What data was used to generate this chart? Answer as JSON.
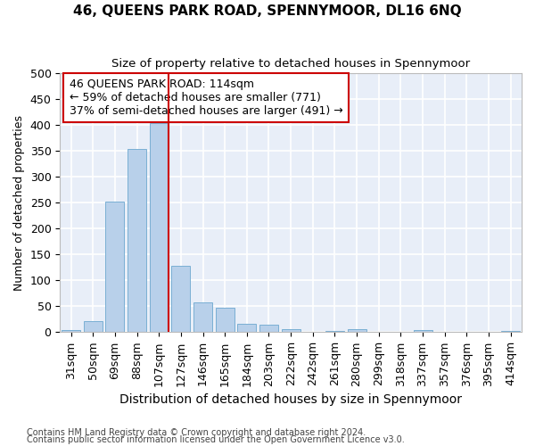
{
  "title": "46, QUEENS PARK ROAD, SPENNYMOOR, DL16 6NQ",
  "subtitle": "Size of property relative to detached houses in Spennymoor",
  "xlabel": "Distribution of detached houses by size in Spennymoor",
  "ylabel": "Number of detached properties",
  "footnote1": "Contains HM Land Registry data © Crown copyright and database right 2024.",
  "footnote2": "Contains public sector information licensed under the Open Government Licence v3.0.",
  "categories": [
    "31sqm",
    "50sqm",
    "69sqm",
    "88sqm",
    "107sqm",
    "127sqm",
    "146sqm",
    "165sqm",
    "184sqm",
    "203sqm",
    "222sqm",
    "242sqm",
    "261sqm",
    "280sqm",
    "299sqm",
    "318sqm",
    "337sqm",
    "357sqm",
    "376sqm",
    "395sqm",
    "414sqm"
  ],
  "values": [
    5,
    22,
    252,
    353,
    403,
    128,
    58,
    48,
    17,
    14,
    6,
    1,
    2,
    6,
    1,
    1,
    4,
    1,
    0,
    1,
    2
  ],
  "bar_color": "#b8d0ea",
  "bar_edge_color": "#7aafd4",
  "ylim": [
    0,
    500
  ],
  "yticks": [
    0,
    50,
    100,
    150,
    200,
    250,
    300,
    350,
    400,
    450,
    500
  ],
  "property_label": "46 QUEENS PARK ROAD: 114sqm",
  "annotation_line1": "← 59% of detached houses are smaller (771)",
  "annotation_line2": "37% of semi-detached houses are larger (491) →",
  "vline_x": 4.43,
  "annotation_color": "#cc0000",
  "background_color": "#e8eef8",
  "grid_color": "white",
  "title_fontsize": 11,
  "subtitle_fontsize": 9.5,
  "xlabel_fontsize": 10,
  "ylabel_fontsize": 9,
  "tick_fontsize": 9,
  "annotation_fontsize": 9,
  "footnote_fontsize": 7
}
